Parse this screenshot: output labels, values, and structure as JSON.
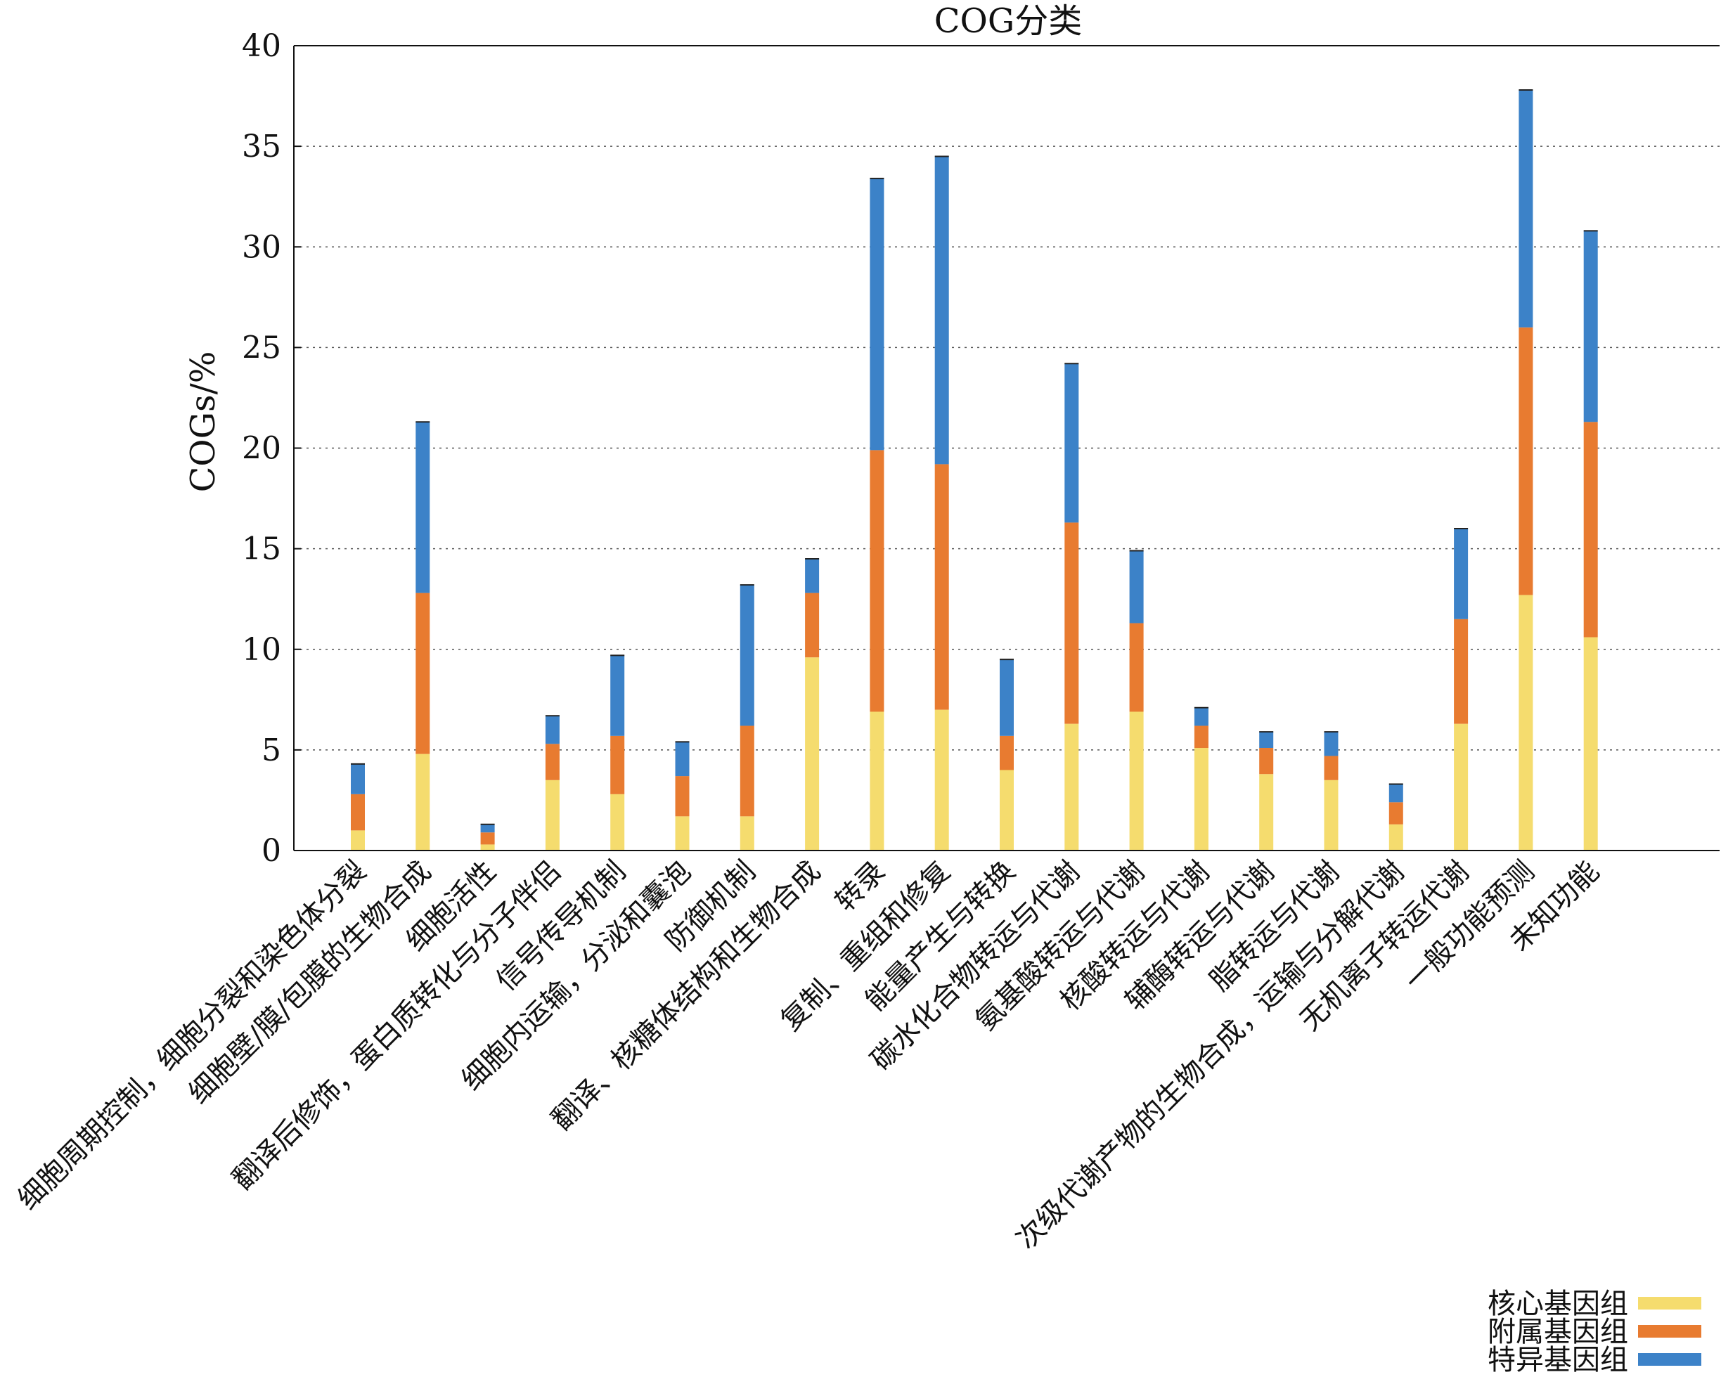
{
  "chart_data": {
    "type": "bar",
    "stacked": true,
    "title": "COG分类",
    "xlabel": "",
    "ylabel": "COGs/%",
    "ylim": [
      0,
      40
    ],
    "yticks": [
      0,
      5,
      10,
      15,
      20,
      25,
      30,
      35,
      40
    ],
    "grid": "horizontal dotted",
    "legend_position": "bottom-right",
    "categories": [
      "细胞周期控制，细胞分裂和染色体分裂",
      "细胞壁/膜/包膜的生物合成",
      "细胞活性",
      "翻译后修饰，蛋白质转化与分子伴侣",
      "信号传导机制",
      "细胞内运输，分泌和囊泡",
      "防御机制",
      "翻译、核糖体结构和生物合成",
      "转录",
      "复制、重组和修复",
      "能量产生与转换",
      "碳水化合物转运与代谢",
      "氨基酸转运与代谢",
      "核酸转运与代谢",
      "辅酶转运与代谢",
      "脂转运与代谢",
      "次级代谢产物的生物合成，运输与分解代谢",
      "无机离子转运代谢",
      "一般功能预测",
      "未知功能"
    ],
    "series": [
      {
        "name": "核心基因组",
        "color": "#f5dc6e",
        "values": [
          1.0,
          4.8,
          0.3,
          3.5,
          2.8,
          1.7,
          1.7,
          9.6,
          6.9,
          7.0,
          4.0,
          6.3,
          6.9,
          5.1,
          3.8,
          3.5,
          1.3,
          6.3,
          12.7,
          10.6
        ]
      },
      {
        "name": "附属基因组",
        "color": "#e87b30",
        "values": [
          1.8,
          8.0,
          0.6,
          1.8,
          2.9,
          2.0,
          4.5,
          3.2,
          13.0,
          12.2,
          1.7,
          10.0,
          4.4,
          1.1,
          1.3,
          1.2,
          1.1,
          5.2,
          13.3,
          10.7
        ]
      },
      {
        "name": "特异基因组",
        "color": "#3c82c8",
        "values": [
          1.5,
          8.5,
          0.4,
          1.4,
          4.0,
          1.7,
          7.0,
          1.7,
          13.5,
          15.3,
          3.8,
          7.9,
          3.6,
          0.9,
          0.8,
          1.2,
          0.9,
          4.5,
          11.8,
          9.5
        ]
      }
    ]
  }
}
